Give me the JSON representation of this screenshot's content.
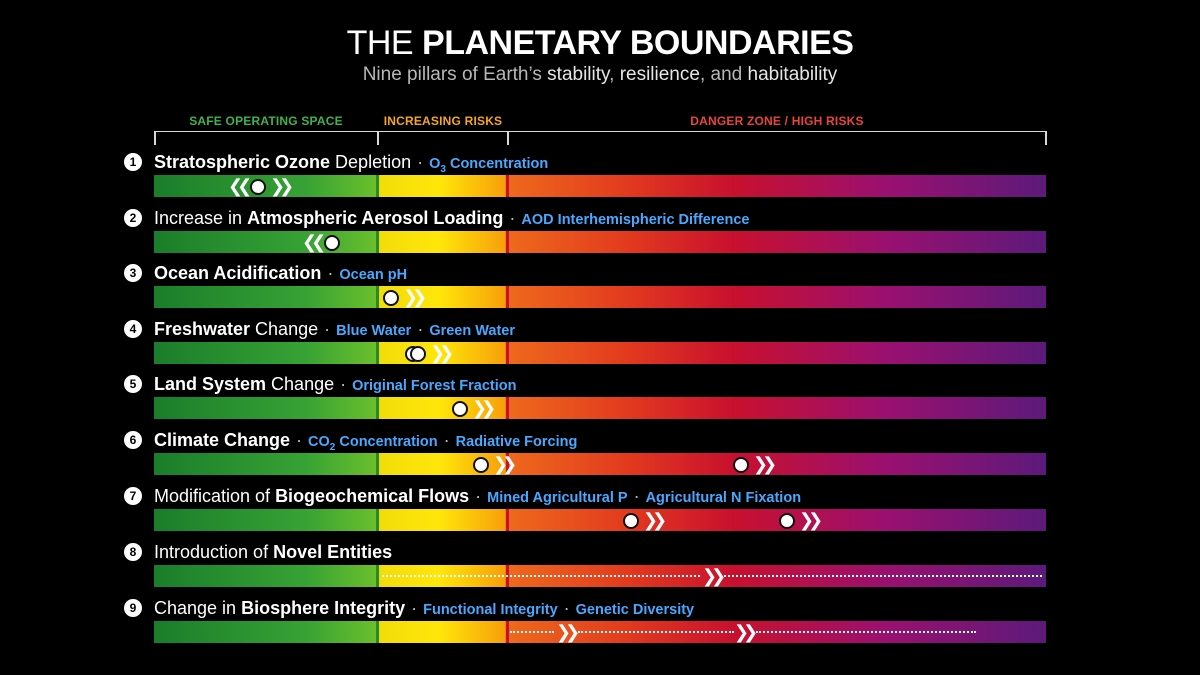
{
  "title": {
    "light": "THE",
    "bold": "PLANETARY BOUNDARIES"
  },
  "subtitle": {
    "part1": "Nine pillars of Earth’s",
    "hl1": "stability",
    "sep1": ",",
    "hl2": "resilience",
    "sep2": ", and",
    "hl3": "habitability"
  },
  "zones": [
    {
      "label": "SAFE OPERATING SPACE",
      "color": "#3fb34f"
    },
    {
      "label": "INCREASING RISKS",
      "color": "#f5a623"
    },
    {
      "label": "DANGER ZONE / HIGH RISKS",
      "color": "#e8453c"
    }
  ],
  "colors": {
    "metric": "#4aa8ff",
    "safe_divider": "#2a8a2a",
    "danger_divider": "#c8102e"
  },
  "rows": [
    {
      "num": "1",
      "bold1": "Stratospheric Ozone",
      "text1": " Depletion",
      "metric1": "O",
      "metric1_sub": "3",
      "metric1_rest": " Concentration"
    },
    {
      "num": "2",
      "text0": "Increase in ",
      "bold1": "Atmospheric Aerosol Loading",
      "metric1": "AOD Interhemispheric Difference"
    },
    {
      "num": "3",
      "bold1": "Ocean Acidification",
      "metric1": "Ocean pH"
    },
    {
      "num": "4",
      "bold1": "Freshwater",
      "text1": " Change",
      "metric1": "Blue Water",
      "metric2": "Green Water"
    },
    {
      "num": "5",
      "bold1": "Land System",
      "text1": " Change",
      "metric1": "Original Forest Fraction"
    },
    {
      "num": "6",
      "bold1": "Climate Change",
      "metric1": "CO",
      "metric1_sub": "2",
      "metric1_rest": " Concentration",
      "metric2": "Radiative Forcing"
    },
    {
      "num": "7",
      "text0": "Modification of ",
      "bold1": "Biogeochemical Flows",
      "metric1": "Mined Agricultural P",
      "metric2": "Agricultural N Fixation"
    },
    {
      "num": "8",
      "text0": "Introduction of ",
      "bold1": "Novel Entities"
    },
    {
      "num": "9",
      "text0": "Change in ",
      "bold1": "Biosphere Integrity",
      "metric1": "Functional Integrity",
      "metric2": "Genetic Diversity"
    }
  ],
  "indicator_levels": {
    "ozone_o3_concentration": 0.12,
    "aerosol_aod_difference": 0.2,
    "ocean_ph": 0.265,
    "freshwater_blue_water": 0.29,
    "freshwater_green_water": 0.296,
    "land_forest_fraction": 0.344,
    "climate_co2_concentration": 0.369,
    "climate_radiative_forcing": 0.658,
    "biogeochemical_p": 0.534,
    "biogeochemical_n": 0.709
  }
}
